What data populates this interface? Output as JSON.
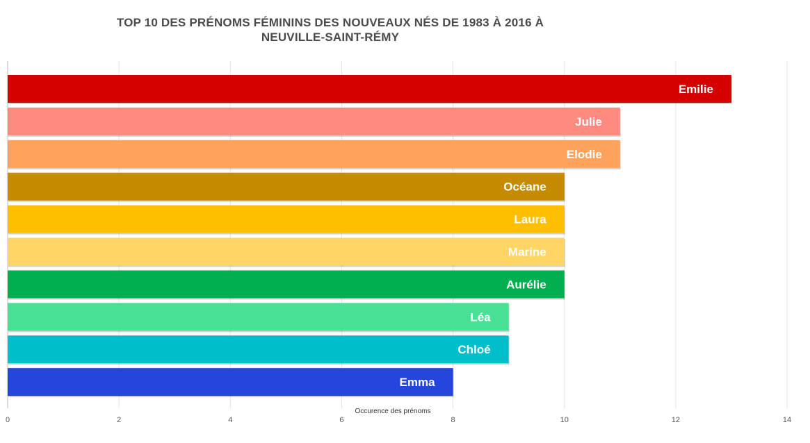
{
  "chart_data": {
    "type": "bar",
    "orientation": "horizontal",
    "title_lines": [
      "TOP 10 DES PRÉNOMS FÉMININS DES NOUVEAUX NÉS DE 1983 À 2016 À",
      "NEUVILLE-SAINT-RÉMY"
    ],
    "xlabel": "Occurence des prénoms",
    "ylabel": "",
    "xlim": [
      0,
      14
    ],
    "xticks": [
      "0",
      "2",
      "4",
      "6",
      "8",
      "10",
      "12",
      "14"
    ],
    "grid": true,
    "legend": "none",
    "categories": [
      "Emilie",
      "Julie",
      "Elodie",
      "Océane",
      "Laura",
      "Marine",
      "Aurélie",
      "Léa",
      "Chloé",
      "Emma"
    ],
    "values": [
      13,
      11,
      11,
      10,
      10,
      10,
      10,
      9,
      9,
      8
    ],
    "colors": [
      "#d50000",
      "#ff8a80",
      "#ffa35c",
      "#c68c00",
      "#ffbf00",
      "#ffd666",
      "#00b050",
      "#48e095",
      "#00bfc8",
      "#2446dd"
    ]
  }
}
